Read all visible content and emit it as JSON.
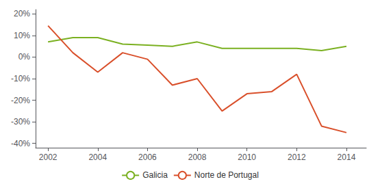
{
  "chart_data": {
    "type": "line",
    "x": [
      2002,
      2003,
      2004,
      2005,
      2006,
      2007,
      2008,
      2009,
      2010,
      2011,
      2012,
      2013,
      2014
    ],
    "series": [
      {
        "name": "Galicia",
        "color": "#7ab020",
        "values": [
          0.07,
          0.09,
          0.09,
          0.06,
          0.055,
          0.05,
          0.07,
          0.04,
          0.04,
          0.04,
          0.04,
          0.03,
          0.05
        ]
      },
      {
        "name": "Norte de Portugal",
        "color": "#d94f2a",
        "values": [
          0.145,
          0.02,
          -0.07,
          0.02,
          -0.01,
          -0.13,
          -0.1,
          -0.25,
          -0.17,
          -0.16,
          -0.08,
          -0.32,
          -0.35
        ]
      }
    ],
    "xlim": [
      2001.5,
      2014.8
    ],
    "xticks": [
      2002,
      2004,
      2006,
      2008,
      2010,
      2012,
      2014
    ],
    "ylim": [
      -0.42,
      0.22
    ],
    "yticks": [
      {
        "value": -0.4,
        "label": "-40%"
      },
      {
        "value": -0.3,
        "label": "-30%"
      },
      {
        "value": -0.2,
        "label": "-20%"
      },
      {
        "value": -0.1,
        "label": "-10%"
      },
      {
        "value": 0.0,
        "label": "0%"
      },
      {
        "value": 0.1,
        "label": "10%"
      },
      {
        "value": 0.2,
        "label": "20%"
      }
    ],
    "grid": false,
    "legend": "bottom"
  }
}
